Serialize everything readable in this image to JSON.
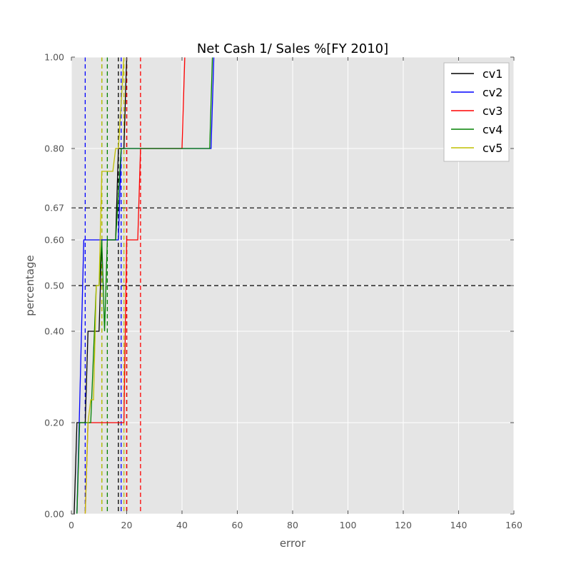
{
  "chart_data": {
    "type": "line",
    "title": "Net Cash 1/ Sales %[FY 2010]",
    "xlabel": "error",
    "ylabel": "percentage",
    "xlim": [
      0,
      160
    ],
    "ylim": [
      0,
      1
    ],
    "xticks": [
      0,
      20,
      40,
      60,
      80,
      100,
      120,
      140,
      160
    ],
    "xtick_labels": [
      "0",
      "20",
      "40",
      "60",
      "80",
      "100",
      "120",
      "140",
      "160"
    ],
    "yticks": [
      0,
      0.2,
      0.4,
      0.5,
      0.6,
      0.67,
      0.8,
      1.0
    ],
    "ytick_labels": [
      "0.00",
      "0.20",
      "0.40",
      "0.50",
      "0.60",
      "0.67",
      "0.80",
      "1.00"
    ],
    "grid": true,
    "legend_position": "top-right",
    "reference_lines_y": [
      0.5,
      0.67
    ],
    "series": [
      {
        "name": "cv1",
        "color": "#000000",
        "x": [
          1,
          2,
          5,
          6,
          10,
          11,
          16,
          17,
          19,
          20
        ],
        "y": [
          0,
          0.2,
          0.2,
          0.4,
          0.4,
          0.6,
          0.6,
          0.8,
          0.8,
          1.0
        ],
        "vlines": [
          17,
          20
        ]
      },
      {
        "name": "cv2",
        "color": "#0000ff",
        "x": [
          2,
          4.5,
          5,
          17,
          18,
          50.5,
          51.5
        ],
        "y": [
          0,
          0.6,
          0.6,
          0.6,
          0.8,
          0.8,
          1.0
        ],
        "vlines": [
          5,
          18
        ]
      },
      {
        "name": "cv3",
        "color": "#ff0000",
        "x": [
          5,
          6,
          19,
          20,
          24,
          25,
          40,
          41
        ],
        "y": [
          0,
          0.2,
          0.2,
          0.6,
          0.6,
          0.8,
          0.8,
          1.0
        ],
        "vlines": [
          20,
          25
        ]
      },
      {
        "name": "cv4",
        "color": "#008000",
        "x": [
          2,
          3,
          7,
          9,
          10,
          11,
          12,
          13,
          16,
          18,
          50,
          51
        ],
        "y": [
          0,
          0.2,
          0.2,
          0.5,
          0.5,
          0.6,
          0.4,
          0.6,
          0.6,
          0.8,
          0.8,
          1.0
        ],
        "vlines": [
          11,
          13
        ]
      },
      {
        "name": "cv5",
        "color": "#bfbf00",
        "x": [
          5,
          6,
          7,
          8,
          9,
          10,
          11,
          15,
          16,
          17,
          19
        ],
        "y": [
          0,
          0.2,
          0.25,
          0.25,
          0.5,
          0.5,
          0.75,
          0.75,
          0.8,
          0.8,
          1.0
        ],
        "vlines": [
          11,
          19
        ]
      }
    ]
  }
}
